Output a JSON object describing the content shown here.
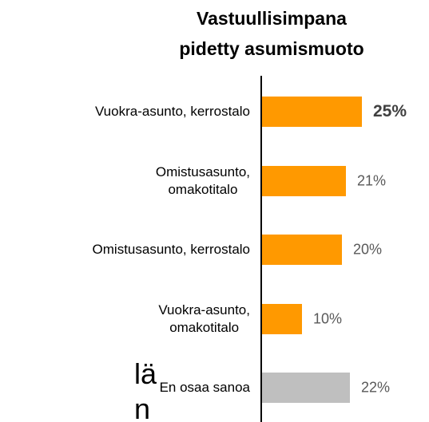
{
  "chart_data": {
    "type": "bar",
    "orientation": "horizontal",
    "title": "Vastuullisimpana\npidetty asumismuoto",
    "categories": [
      "Vuokra-asunto, kerrostalo",
      "Omistusasunto,\nomakotitalo",
      "Omistusasunto, kerrostalo",
      "Vuokra-asunto,\nomakotitalo",
      "En osaa sanoa"
    ],
    "values": [
      25,
      21,
      20,
      10,
      22
    ],
    "value_labels": [
      "25%",
      "21%",
      "20%",
      "10%",
      "22%"
    ],
    "colors": [
      "#ff9900",
      "#ff9900",
      "#ff9900",
      "#ff9900",
      "#bfbfbf"
    ],
    "bold_labels": [
      true,
      false,
      false,
      false,
      false
    ],
    "annotations": [
      "lä",
      "n"
    ]
  }
}
